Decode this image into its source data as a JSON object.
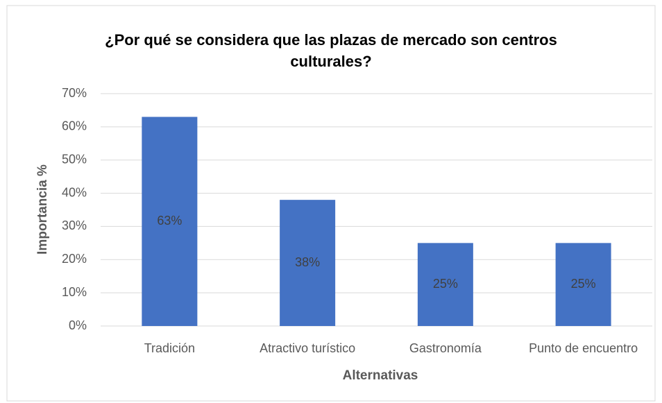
{
  "chart_data": {
    "type": "bar",
    "title": "¿Por qué se considera que las plazas de mercado son centros culturales?",
    "xlabel": "Alternativas",
    "ylabel": "Importancia %",
    "categories": [
      "Tradición",
      "Atractivo turístico",
      "Gastronomía",
      "Punto de encuentro"
    ],
    "values": [
      63,
      38,
      25,
      25
    ],
    "value_labels": [
      "63%",
      "38%",
      "25%",
      "25%"
    ],
    "color": "#4472c4",
    "ylim": [
      0,
      70
    ],
    "yticks": [
      {
        "value": 0,
        "label": "0%"
      },
      {
        "value": 10,
        "label": "10%"
      },
      {
        "value": 20,
        "label": "20%"
      },
      {
        "value": 30,
        "label": "30%"
      },
      {
        "value": 40,
        "label": "40%"
      },
      {
        "value": 50,
        "label": "50%"
      },
      {
        "value": 60,
        "label": "60%"
      },
      {
        "value": 70,
        "label": "70%"
      }
    ],
    "grid": true
  }
}
